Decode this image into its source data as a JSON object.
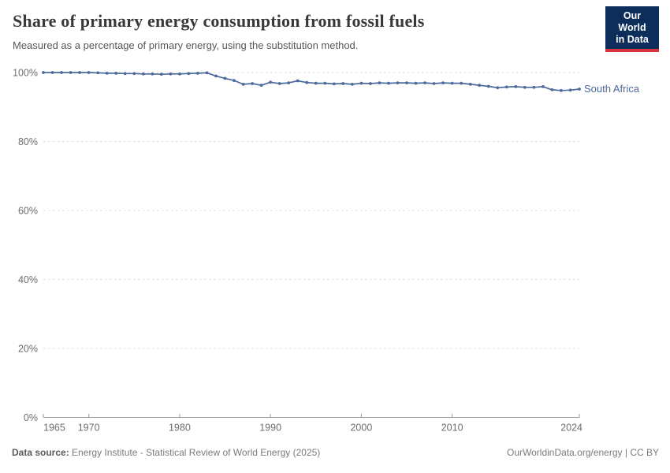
{
  "header": {
    "title": "Share of primary energy consumption from fossil fuels",
    "subtitle": "Measured as a percentage of primary energy, using the substitution method."
  },
  "logo": {
    "line1": "Our World",
    "line2": "in Data"
  },
  "chart_data": {
    "type": "line",
    "title": "Share of primary energy consumption from fossil fuels",
    "subtitle": "Measured as a percentage of primary energy, using the substitution method.",
    "xlabel": "",
    "ylabel": "",
    "xlim": [
      1965,
      2024
    ],
    "ylim": [
      0,
      100
    ],
    "grid": "horizontal-dashed",
    "legend_position": "line-end-label",
    "marker": "circle",
    "yticks": [
      0,
      20,
      40,
      60,
      80,
      100
    ],
    "ytick_labels": [
      "0%",
      "20%",
      "40%",
      "60%",
      "80%",
      "100%"
    ],
    "xticks": [
      1965,
      1970,
      1980,
      1990,
      2000,
      2010,
      2024
    ],
    "xtick_labels": [
      "1965",
      "1970",
      "1980",
      "1990",
      "2000",
      "2010",
      "2024"
    ],
    "x": [
      1965,
      1966,
      1967,
      1968,
      1969,
      1970,
      1971,
      1972,
      1973,
      1974,
      1975,
      1976,
      1977,
      1978,
      1979,
      1980,
      1981,
      1982,
      1983,
      1984,
      1985,
      1986,
      1987,
      1988,
      1989,
      1990,
      1991,
      1992,
      1993,
      1994,
      1995,
      1996,
      1997,
      1998,
      1999,
      2000,
      2001,
      2002,
      2003,
      2004,
      2005,
      2006,
      2007,
      2008,
      2009,
      2010,
      2011,
      2012,
      2013,
      2014,
      2015,
      2016,
      2017,
      2018,
      2019,
      2020,
      2021,
      2022,
      2023,
      2024
    ],
    "series": [
      {
        "name": "South Africa",
        "color": "#4C6A9C",
        "values": [
          100.0,
          100.0,
          100.0,
          100.0,
          100.0,
          100.0,
          99.9,
          99.8,
          99.8,
          99.7,
          99.7,
          99.6,
          99.6,
          99.5,
          99.6,
          99.6,
          99.7,
          99.8,
          99.9,
          99.0,
          98.3,
          97.7,
          96.6,
          96.8,
          96.3,
          97.2,
          96.8,
          97.0,
          97.6,
          97.1,
          96.9,
          96.9,
          96.7,
          96.8,
          96.6,
          96.9,
          96.8,
          97.0,
          96.9,
          97.0,
          97.0,
          96.9,
          97.0,
          96.8,
          97.0,
          96.9,
          96.9,
          96.6,
          96.3,
          96.0,
          95.6,
          95.8,
          95.9,
          95.7,
          95.7,
          95.9,
          95.0,
          94.8,
          94.9,
          95.2
        ]
      }
    ]
  },
  "footer": {
    "source_label": "Data source:",
    "source_text": "Energy Institute - Statistical Review of World Energy (2025)",
    "license_text": "OurWorldinData.org/energy | CC BY"
  },
  "colors": {
    "series": "#4C6A9C",
    "grid": "#dcdcdc",
    "axis": "#9e9e9e",
    "tick_label": "#6e6e6e",
    "title": "#383838",
    "subtitle": "#575757",
    "footer": "#7b7b7b",
    "logo_bg": "#0d2e5b",
    "logo_accent": "#d8353f"
  }
}
